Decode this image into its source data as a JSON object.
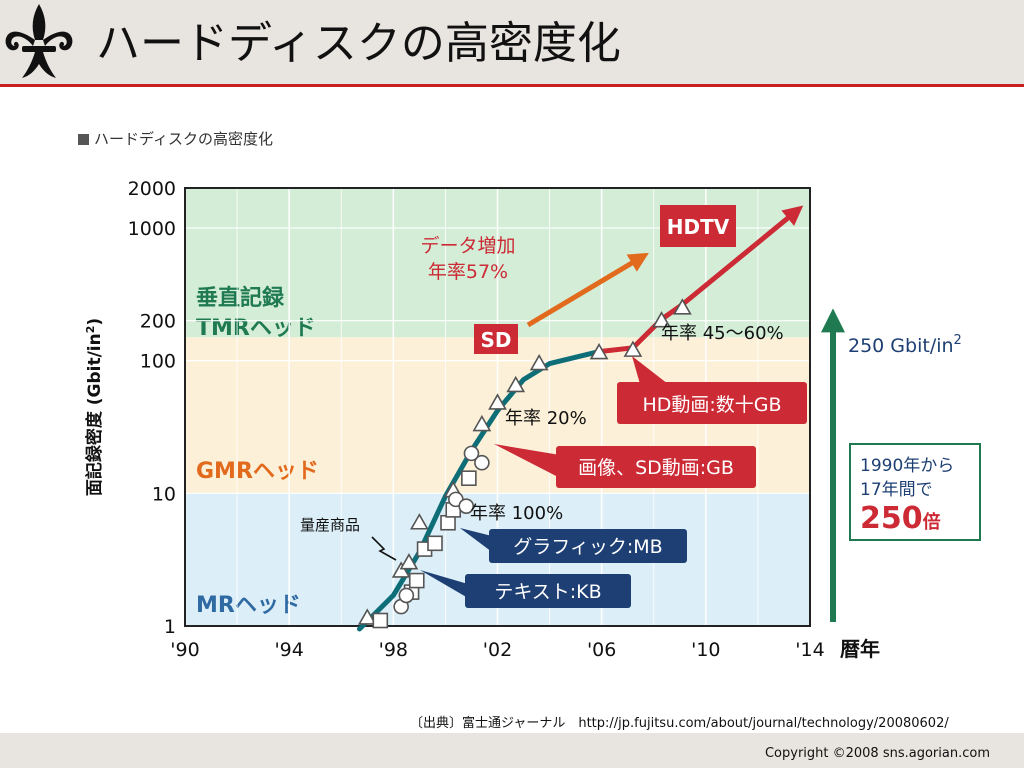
{
  "slide": {
    "title": "ハードディスクの高密度化",
    "figure_caption": "ハードディスクの高密度化",
    "source": "〔出典〕富士通ジャーナル　http://jp.fujitsu.com/about/journal/technology/20080602/",
    "copyright": "Copyright ©2008 sns.agorian.com",
    "logo_icon": "fleur-de-lis-icon"
  },
  "colors": {
    "accent_red": "#c8201e",
    "band_mr": "#dceef8",
    "band_gmr": "#fdf0d8",
    "band_tmr": "#d3edd6",
    "trend_teal": "#0e6e78",
    "trend_red": "#cc2a35",
    "arrow_orange": "#e26a1d",
    "arrow_green": "#1f7a52",
    "label_navy": "#1d3f73",
    "label_red": "#cc2a35"
  },
  "chart_data": {
    "type": "scatter",
    "scale_y": "log",
    "xlabel": "暦年",
    "ylabel": "面記録密度",
    "ylabel_unit": "Gbit/in",
    "ylabel_unit_sup": "2",
    "xlim": [
      1990,
      2014
    ],
    "ylim": [
      1,
      2000
    ],
    "x_ticks": [
      1990,
      1994,
      1998,
      2002,
      2006,
      2010,
      2014
    ],
    "x_tick_labels": [
      "'90",
      "'94",
      "'98",
      "'02",
      "'06",
      "'10",
      "'14"
    ],
    "y_ticks": [
      1,
      10,
      100,
      200,
      1000,
      2000
    ],
    "y_tick_labels": [
      "1",
      "10",
      "100",
      "200",
      "1000",
      "2000"
    ],
    "grid": true,
    "bands": [
      {
        "label": "MRヘッド",
        "y_from": 1,
        "y_to": 10,
        "color": "#dceef8",
        "label_color": "#2f6aa3"
      },
      {
        "label": "GMRヘッド",
        "y_from": 10,
        "y_to": 150,
        "color": "#fdf0d8",
        "label_color": "#e26a1d"
      },
      {
        "label_lines": [
          "垂直記録",
          "TMRヘッド"
        ],
        "y_from": 150,
        "y_to": 2000,
        "color": "#d3edd6",
        "label_color": "#1f7a52"
      }
    ],
    "series": [
      {
        "marker": "triangle",
        "points": [
          [
            1997.0,
            1.15
          ],
          [
            1998.3,
            2.6
          ],
          [
            1998.6,
            3.0
          ],
          [
            1999.0,
            6.0
          ],
          [
            2000.3,
            10.5
          ],
          [
            2001.4,
            33
          ],
          [
            2002.0,
            48
          ],
          [
            2002.7,
            65
          ],
          [
            2003.6,
            95
          ],
          [
            2005.9,
            115
          ],
          [
            2007.2,
            120
          ],
          [
            2008.3,
            200
          ],
          [
            2009.1,
            250
          ]
        ]
      },
      {
        "marker": "square",
        "points": [
          [
            1997.5,
            1.1
          ],
          [
            1998.7,
            1.8
          ],
          [
            1998.9,
            2.2
          ],
          [
            1999.2,
            3.8
          ],
          [
            1999.6,
            4.2
          ],
          [
            2000.1,
            6.0
          ],
          [
            2000.3,
            7.5
          ],
          [
            2000.9,
            13
          ]
        ]
      },
      {
        "marker": "circle",
        "points": [
          [
            1998.3,
            1.4
          ],
          [
            1998.5,
            1.7
          ],
          [
            2000.4,
            9.0
          ],
          [
            2000.8,
            8.0
          ],
          [
            2001.0,
            20
          ],
          [
            2001.4,
            17
          ]
        ]
      }
    ],
    "trend_teal": [
      [
        1996.7,
        0.95
      ],
      [
        1998.0,
        1.7
      ],
      [
        1999.0,
        3.6
      ],
      [
        2000.0,
        9.5
      ],
      [
        2001.0,
        21
      ],
      [
        2002.0,
        42
      ],
      [
        2003.0,
        72
      ],
      [
        2004.0,
        95
      ],
      [
        2005.9,
        117
      ]
    ],
    "trend_red": [
      [
        2005.9,
        117
      ],
      [
        2007.2,
        125
      ],
      [
        2008.3,
        205
      ],
      [
        2009.1,
        265
      ],
      [
        2013.5,
        1350
      ]
    ],
    "annotations": {
      "rate_100": "年率 100%",
      "rate_20": "年率 20%",
      "rate_45_60": "年率 45〜60%",
      "mass_production": "量産商品",
      "data_growth_line1": "データ増加",
      "data_growth_line2": "年率57%",
      "sd": "SD",
      "hdtv": "HDTV",
      "label_text": "テキスト:KB",
      "label_graphic": "グラフィック:MB",
      "label_image": "画像、SD動画:GB",
      "label_hd": "HD動画:数十GB",
      "growth_value": "250 Gbit/in",
      "growth_sup": "2",
      "box_line1": "1990年から",
      "box_line2": "17年間で",
      "box_big": "250",
      "box_unit": "倍"
    }
  }
}
